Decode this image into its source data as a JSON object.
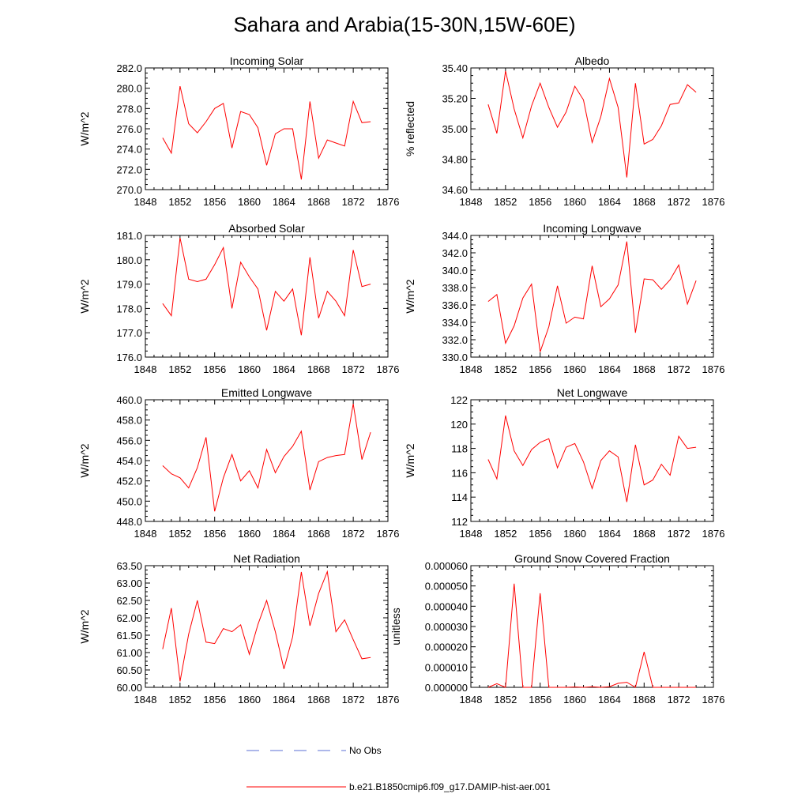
{
  "figure": {
    "title": "Sahara and Arabia(15-30N,15W-60E)"
  },
  "legend": {
    "entries": [
      {
        "label": "No Obs",
        "color": "#5b6fd6",
        "style": "dashed"
      },
      {
        "label": "b.e21.B1850cmip6.f09_g17.DAMIP-hist-aer.001",
        "color": "#ff0000",
        "style": "solid"
      }
    ]
  },
  "chart_data": [
    {
      "type": "line",
      "title": "Incoming Solar",
      "xlabel": "",
      "ylabel": "W/m^2",
      "xlim": [
        1848,
        1876
      ],
      "ylim": [
        270,
        282
      ],
      "xticks": [
        "1848",
        "1852",
        "1856",
        "1860",
        "1864",
        "1868",
        "1872",
        "1876"
      ],
      "yticks": [
        "270.0",
        "272.0",
        "274.0",
        "276.0",
        "278.0",
        "280.0",
        "282.0"
      ],
      "ytick_values": [
        270,
        272,
        274,
        276,
        278,
        280,
        282
      ],
      "x": [
        1850,
        1851,
        1852,
        1853,
        1854,
        1855,
        1856,
        1857,
        1858,
        1859,
        1860,
        1861,
        1862,
        1863,
        1864,
        1865,
        1866,
        1867,
        1868,
        1869,
        1870,
        1871,
        1872,
        1873,
        1874
      ],
      "series": [
        {
          "name": "b.e21.B1850cmip6.f09_g17.DAMIP-hist-aer.001",
          "color": "#ff0000",
          "values": [
            275.1,
            273.6,
            280.2,
            276.5,
            275.6,
            276.7,
            278.0,
            278.5,
            274.1,
            277.7,
            277.4,
            276.1,
            272.4,
            275.5,
            276.0,
            276.0,
            271.0,
            278.7,
            273.1,
            274.9,
            274.6,
            274.3,
            278.7,
            276.6,
            276.7
          ]
        }
      ]
    },
    {
      "type": "line",
      "title": "Albedo",
      "xlabel": "",
      "ylabel": "% reflected",
      "xlim": [
        1848,
        1876
      ],
      "ylim": [
        34.6,
        35.4
      ],
      "xticks": [
        "1848",
        "1852",
        "1856",
        "1860",
        "1864",
        "1868",
        "1872",
        "1876"
      ],
      "yticks": [
        "34.60",
        "34.80",
        "35.00",
        "35.20",
        "35.40"
      ],
      "ytick_values": [
        34.6,
        34.8,
        35.0,
        35.2,
        35.4
      ],
      "x": [
        1850,
        1851,
        1852,
        1853,
        1854,
        1855,
        1856,
        1857,
        1858,
        1859,
        1860,
        1861,
        1862,
        1863,
        1864,
        1865,
        1866,
        1867,
        1868,
        1869,
        1870,
        1871,
        1872,
        1873,
        1874
      ],
      "series": [
        {
          "name": "b.e21.B1850cmip6.f09_g17.DAMIP-hist-aer.001",
          "color": "#ff0000",
          "values": [
            35.16,
            34.97,
            35.38,
            35.13,
            34.94,
            35.15,
            35.3,
            35.14,
            35.01,
            35.11,
            35.28,
            35.19,
            34.91,
            35.08,
            35.33,
            35.14,
            34.68,
            35.3,
            34.9,
            34.93,
            35.02,
            35.16,
            35.17,
            35.29,
            35.24
          ]
        }
      ]
    },
    {
      "type": "line",
      "title": "Absorbed Solar",
      "xlabel": "",
      "ylabel": "W/m^2",
      "xlim": [
        1848,
        1876
      ],
      "ylim": [
        176,
        181
      ],
      "xticks": [
        "1848",
        "1852",
        "1856",
        "1860",
        "1864",
        "1868",
        "1872",
        "1876"
      ],
      "yticks": [
        "176.0",
        "177.0",
        "178.0",
        "179.0",
        "180.0",
        "181.0"
      ],
      "ytick_values": [
        176,
        177,
        178,
        179,
        180,
        181
      ],
      "x": [
        1850,
        1851,
        1852,
        1853,
        1854,
        1855,
        1856,
        1857,
        1858,
        1859,
        1860,
        1861,
        1862,
        1863,
        1864,
        1865,
        1866,
        1867,
        1868,
        1869,
        1870,
        1871,
        1872,
        1873,
        1874
      ],
      "series": [
        {
          "name": "b.e21.B1850cmip6.f09_g17.DAMIP-hist-aer.001",
          "color": "#ff0000",
          "values": [
            178.2,
            177.7,
            180.9,
            179.2,
            179.1,
            179.2,
            179.8,
            180.5,
            178.0,
            179.9,
            179.3,
            178.8,
            177.1,
            178.7,
            178.3,
            178.8,
            176.9,
            180.1,
            177.6,
            178.7,
            178.3,
            177.7,
            180.4,
            178.9,
            179.0
          ]
        }
      ]
    },
    {
      "type": "line",
      "title": "Incoming Longwave",
      "xlabel": "",
      "ylabel": "W/m^2",
      "xlim": [
        1848,
        1876
      ],
      "ylim": [
        330,
        344
      ],
      "xticks": [
        "1848",
        "1852",
        "1856",
        "1860",
        "1864",
        "1868",
        "1872",
        "1876"
      ],
      "yticks": [
        "330.0",
        "332.0",
        "334.0",
        "336.0",
        "338.0",
        "340.0",
        "342.0",
        "344.0"
      ],
      "ytick_values": [
        330,
        332,
        334,
        336,
        338,
        340,
        342,
        344
      ],
      "x": [
        1850,
        1851,
        1852,
        1853,
        1854,
        1855,
        1856,
        1857,
        1858,
        1859,
        1860,
        1861,
        1862,
        1863,
        1864,
        1865,
        1866,
        1867,
        1868,
        1869,
        1870,
        1871,
        1872,
        1873,
        1874
      ],
      "series": [
        {
          "name": "b.e21.B1850cmip6.f09_g17.DAMIP-hist-aer.001",
          "color": "#ff0000",
          "values": [
            336.4,
            337.2,
            331.6,
            333.6,
            336.8,
            338.4,
            330.6,
            333.5,
            338.2,
            333.9,
            334.6,
            334.4,
            340.5,
            335.8,
            336.7,
            338.3,
            343.3,
            332.8,
            339.0,
            338.9,
            337.8,
            338.9,
            340.6,
            336.1,
            338.8
          ]
        }
      ]
    },
    {
      "type": "line",
      "title": "Emitted Longwave",
      "xlabel": "",
      "ylabel": "W/m^2",
      "xlim": [
        1848,
        1876
      ],
      "ylim": [
        448,
        460
      ],
      "xticks": [
        "1848",
        "1852",
        "1856",
        "1860",
        "1864",
        "1868",
        "1872",
        "1876"
      ],
      "yticks": [
        "448.0",
        "450.0",
        "452.0",
        "454.0",
        "456.0",
        "458.0",
        "460.0"
      ],
      "ytick_values": [
        448,
        450,
        452,
        454,
        456,
        458,
        460
      ],
      "x": [
        1850,
        1851,
        1852,
        1853,
        1854,
        1855,
        1856,
        1857,
        1858,
        1859,
        1860,
        1861,
        1862,
        1863,
        1864,
        1865,
        1866,
        1867,
        1868,
        1869,
        1870,
        1871,
        1872,
        1873,
        1874
      ],
      "series": [
        {
          "name": "b.e21.B1850cmip6.f09_g17.DAMIP-hist-aer.001",
          "color": "#ff0000",
          "values": [
            453.5,
            452.7,
            452.3,
            451.3,
            453.3,
            456.3,
            449.0,
            452.3,
            454.6,
            452.0,
            453.0,
            451.3,
            455.1,
            452.8,
            454.4,
            455.4,
            456.9,
            451.1,
            453.9,
            454.3,
            454.5,
            454.6,
            459.6,
            454.1,
            456.8
          ]
        }
      ]
    },
    {
      "type": "line",
      "title": "Net Longwave",
      "xlabel": "",
      "ylabel": "W/m^2",
      "xlim": [
        1848,
        1876
      ],
      "ylim": [
        112,
        122
      ],
      "xticks": [
        "1848",
        "1852",
        "1856",
        "1860",
        "1864",
        "1868",
        "1872",
        "1876"
      ],
      "yticks": [
        "112",
        "114",
        "116",
        "118",
        "120",
        "122"
      ],
      "ytick_values": [
        112,
        114,
        116,
        118,
        120,
        122
      ],
      "x": [
        1850,
        1851,
        1852,
        1853,
        1854,
        1855,
        1856,
        1857,
        1858,
        1859,
        1860,
        1861,
        1862,
        1863,
        1864,
        1865,
        1866,
        1867,
        1868,
        1869,
        1870,
        1871,
        1872,
        1873,
        1874
      ],
      "series": [
        {
          "name": "b.e21.B1850cmip6.f09_g17.DAMIP-hist-aer.001",
          "color": "#ff0000",
          "values": [
            117.1,
            115.5,
            120.7,
            117.8,
            116.6,
            117.9,
            118.5,
            118.8,
            116.4,
            118.1,
            118.4,
            116.9,
            114.7,
            117.0,
            117.8,
            117.3,
            113.6,
            118.3,
            115.0,
            115.4,
            116.7,
            115.8,
            119.0,
            118.0,
            118.1
          ]
        }
      ]
    },
    {
      "type": "line",
      "title": "Net Radiation",
      "xlabel": "",
      "ylabel": "W/m^2",
      "xlim": [
        1848,
        1876
      ],
      "ylim": [
        60.0,
        63.5
      ],
      "xticks": [
        "1848",
        "1852",
        "1856",
        "1860",
        "1864",
        "1868",
        "1872",
        "1876"
      ],
      "yticks": [
        "60.00",
        "60.50",
        "61.00",
        "61.50",
        "62.00",
        "62.50",
        "63.00",
        "63.50"
      ],
      "ytick_values": [
        60.0,
        60.5,
        61.0,
        61.5,
        62.0,
        62.5,
        63.0,
        63.5
      ],
      "x": [
        1850,
        1851,
        1852,
        1853,
        1854,
        1855,
        1856,
        1857,
        1858,
        1859,
        1860,
        1861,
        1862,
        1863,
        1864,
        1865,
        1866,
        1867,
        1868,
        1869,
        1870,
        1871,
        1872,
        1873,
        1874
      ],
      "series": [
        {
          "name": "b.e21.B1850cmip6.f09_g17.DAMIP-hist-aer.001",
          "color": "#ff0000",
          "values": [
            61.1,
            62.28,
            60.17,
            61.53,
            62.5,
            61.3,
            61.26,
            61.69,
            61.6,
            61.8,
            60.95,
            61.81,
            62.5,
            61.6,
            60.53,
            61.45,
            63.32,
            61.77,
            62.7,
            63.33,
            61.6,
            61.94,
            61.37,
            60.82,
            60.86
          ]
        }
      ]
    },
    {
      "type": "line",
      "title": "Ground Snow Covered Fraction",
      "xlabel": "",
      "ylabel": "unitless",
      "xlim": [
        1848,
        1876
      ],
      "ylim": [
        0,
        6e-05
      ],
      "xticks": [
        "1848",
        "1852",
        "1856",
        "1860",
        "1864",
        "1868",
        "1872",
        "1876"
      ],
      "yticks": [
        "0.000000",
        "0.000010",
        "0.000020",
        "0.000030",
        "0.000040",
        "0.000050",
        "0.000060"
      ],
      "ytick_values": [
        0,
        1e-05,
        2e-05,
        3e-05,
        4e-05,
        5e-05,
        6e-05
      ],
      "x": [
        1850,
        1851,
        1852,
        1853,
        1854,
        1855,
        1856,
        1857,
        1858,
        1859,
        1860,
        1861,
        1862,
        1863,
        1864,
        1865,
        1866,
        1867,
        1868,
        1869,
        1870,
        1871,
        1872,
        1873,
        1874
      ],
      "series": [
        {
          "name": "b.e21.B1850cmip6.f09_g17.DAMIP-hist-aer.001",
          "color": "#ff0000",
          "values": [
            0.0,
            1.8e-06,
            0.0,
            5.11e-05,
            0.0,
            0.0,
            4.64e-05,
            0.0,
            0.0,
            0.0,
            2e-07,
            0.0,
            3e-07,
            0.0,
            3e-07,
            2e-06,
            2.5e-06,
            0.0,
            1.75e-05,
            0.0,
            0.0,
            0.0,
            0.0,
            0.0,
            0.0
          ]
        }
      ]
    }
  ]
}
